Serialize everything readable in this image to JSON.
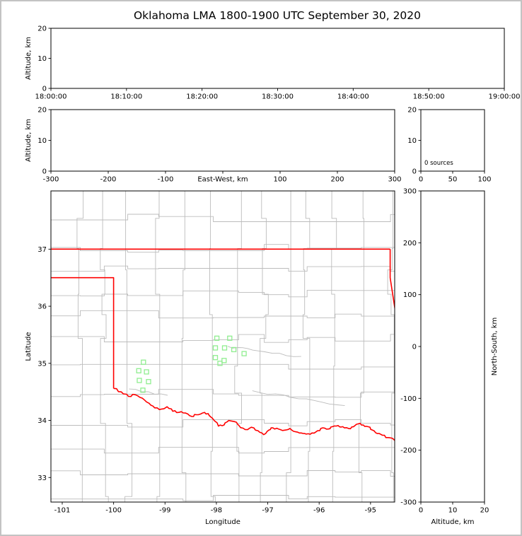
{
  "figure": {
    "title": "Oklahoma LMA 1800-1900 UTC September 30, 2020",
    "frame_color": "#c3c3c3",
    "background": "#ffffff"
  },
  "colors": {
    "axis": "#000000",
    "county_lines": "#bcbcbc",
    "state_border": "#ff0000",
    "station_marker": "#90ee90"
  },
  "chart_data": [
    {
      "id": "time_altitude",
      "type": "scatter",
      "xlabel": "",
      "ylabel": "Altitude, km",
      "xlim": [
        0,
        3600
      ],
      "ylim": [
        0,
        20
      ],
      "xticks": {
        "values": [
          0,
          600,
          1200,
          1800,
          2400,
          3000,
          3600
        ],
        "labels": [
          "18:00:00",
          "18:10:00",
          "18:20:00",
          "18:30:00",
          "18:40:00",
          "18:50:00",
          "19:00:00"
        ]
      },
      "yticks": {
        "values": [
          0,
          10,
          20
        ],
        "labels": [
          "0",
          "10",
          "20"
        ]
      },
      "points": []
    },
    {
      "id": "ew_altitude",
      "type": "scatter",
      "xlabel": "East-West, km",
      "ylabel": "Altitude, km",
      "xlim": [
        -300,
        300
      ],
      "ylim": [
        0,
        20
      ],
      "xticks": {
        "values": [
          -300,
          -200,
          -100,
          0,
          100,
          200,
          300
        ],
        "labels": [
          "-300",
          "-200",
          "-100",
          "",
          "100",
          "200",
          "300"
        ]
      },
      "yticks": {
        "values": [
          0,
          10,
          20
        ],
        "labels": [
          "0",
          "10",
          "20"
        ]
      },
      "points": []
    },
    {
      "id": "src_histogram",
      "type": "histogram",
      "annotation": "0 sources",
      "xlabel": "",
      "ylabel": "",
      "xlim": [
        0,
        100
      ],
      "ylim": [
        0,
        20
      ],
      "xticks": {
        "values": [
          0,
          50,
          100
        ],
        "labels": [
          "0",
          "50",
          "100"
        ]
      },
      "yticks": {
        "values": [
          0,
          10,
          20
        ],
        "labels": [
          "0",
          "10",
          "20"
        ]
      },
      "points": []
    },
    {
      "id": "map",
      "type": "map",
      "xlabel": "Longitude",
      "ylabel": "Latitude",
      "xlim": [
        -101.22,
        -94.53
      ],
      "ylim": [
        32.57,
        38.02
      ],
      "xticks": {
        "values": [
          -101,
          -100,
          -99,
          -98,
          -97,
          -96,
          -95
        ],
        "labels": [
          "-101",
          "-100",
          "-99",
          "-98",
          "-97",
          "-96",
          "-95"
        ]
      },
      "yticks": {
        "values": [
          33,
          34,
          35,
          36,
          37
        ],
        "labels": [
          "33",
          "34",
          "35",
          "36",
          "37"
        ]
      },
      "stations": [
        [
          -97.99,
          35.44
        ],
        [
          -97.74,
          35.44
        ],
        [
          -98.02,
          35.27
        ],
        [
          -97.84,
          35.27
        ],
        [
          -97.66,
          35.24
        ],
        [
          -98.02,
          35.1
        ],
        [
          -97.85,
          35.05
        ],
        [
          -97.46,
          35.17
        ],
        [
          -97.93,
          35.0
        ],
        [
          -99.42,
          35.02
        ],
        [
          -99.51,
          34.87
        ],
        [
          -99.36,
          34.85
        ],
        [
          -99.5,
          34.7
        ],
        [
          -99.32,
          34.68
        ],
        [
          -99.43,
          34.53
        ]
      ],
      "state_border": {
        "straight": [
          [
            [
              -101.25,
              37.0
            ],
            [
              -94.618,
              37.0
            ]
          ],
          [
            [
              -94.618,
              37.0
            ],
            [
              -94.618,
              36.5
            ],
            [
              -94.43,
              35.39
            ]
          ],
          [
            [
              -101.25,
              36.5
            ],
            [
              -100.0,
              36.5
            ],
            [
              -100.0,
              34.56
            ]
          ]
        ],
        "red_river": [
          [
            -100.0,
            34.56
          ],
          [
            -99.85,
            34.5
          ],
          [
            -99.71,
            34.42
          ],
          [
            -99.58,
            34.45
          ],
          [
            -99.44,
            34.39
          ],
          [
            -99.31,
            34.3
          ],
          [
            -99.2,
            34.22
          ],
          [
            -99.06,
            34.2
          ],
          [
            -98.96,
            34.24
          ],
          [
            -98.85,
            34.16
          ],
          [
            -98.73,
            34.14
          ],
          [
            -98.6,
            34.13
          ],
          [
            -98.48,
            34.07
          ],
          [
            -98.39,
            34.1
          ],
          [
            -98.27,
            34.13
          ],
          [
            -98.16,
            34.12
          ],
          [
            -98.08,
            34.04
          ],
          [
            -97.96,
            33.9
          ],
          [
            -97.85,
            33.92
          ],
          [
            -97.76,
            34.0
          ],
          [
            -97.65,
            33.98
          ],
          [
            -97.56,
            33.91
          ],
          [
            -97.44,
            33.84
          ],
          [
            -97.32,
            33.88
          ],
          [
            -97.19,
            33.82
          ],
          [
            -97.08,
            33.75
          ],
          [
            -96.98,
            33.83
          ],
          [
            -96.9,
            33.87
          ],
          [
            -96.79,
            33.85
          ],
          [
            -96.67,
            33.83
          ],
          [
            -96.57,
            33.86
          ],
          [
            -96.45,
            33.8
          ],
          [
            -96.35,
            33.78
          ],
          [
            -96.25,
            33.76
          ],
          [
            -96.14,
            33.78
          ],
          [
            -96.03,
            33.82
          ],
          [
            -95.93,
            33.87
          ],
          [
            -95.82,
            33.85
          ],
          [
            -95.74,
            33.89
          ],
          [
            -95.63,
            33.91
          ],
          [
            -95.54,
            33.89
          ],
          [
            -95.43,
            33.86
          ],
          [
            -95.33,
            33.89
          ],
          [
            -95.24,
            33.94
          ],
          [
            -95.14,
            33.92
          ],
          [
            -95.05,
            33.89
          ],
          [
            -94.96,
            33.83
          ],
          [
            -94.87,
            33.77
          ],
          [
            -94.77,
            33.74
          ],
          [
            -94.66,
            33.7
          ],
          [
            -94.55,
            33.67
          ],
          [
            -94.48,
            33.64
          ]
        ]
      },
      "gray_rivers": [
        [
          [
            -97.78,
            35.3
          ],
          [
            -97.2,
            35.22
          ],
          [
            -96.35,
            35.12
          ]
        ],
        [
          [
            -97.3,
            34.52
          ],
          [
            -96.4,
            34.38
          ],
          [
            -95.5,
            34.26
          ]
        ],
        [
          [
            -99.7,
            34.55
          ],
          [
            -98.95,
            34.44
          ]
        ]
      ]
    },
    {
      "id": "ns_altitude",
      "type": "scatter",
      "xlabel": "Altitude, km",
      "ylabel": "North-South, km",
      "xlim": [
        0,
        20
      ],
      "ylim": [
        -300,
        300
      ],
      "xticks": {
        "values": [
          0,
          10,
          20
        ],
        "labels": [
          "0",
          "10",
          "20"
        ]
      },
      "yticks": {
        "values": [
          -300,
          -200,
          -100,
          0,
          100,
          200,
          300
        ],
        "labels": [
          "-300",
          "-200",
          "-100",
          "0",
          "100",
          "200",
          "300"
        ]
      },
      "points": []
    }
  ]
}
